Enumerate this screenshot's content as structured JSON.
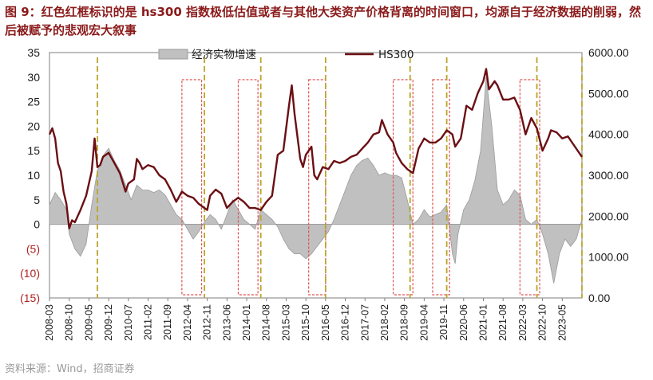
{
  "header": {
    "title": "图 9：红色红框标识的是 hs300 指数极低估值或者与其他大类资产价格背离的时间窗口，均源自于经济数据的削弱，然后被赋予的悲观宏大叙事"
  },
  "footer": {
    "source": "资料来源：Wind，招商证券"
  },
  "chart_data": {
    "type": "line",
    "title": "",
    "legend_placement": "top",
    "y_left": {
      "ylim": [
        -15,
        35
      ],
      "ticks": [
        35,
        30,
        25,
        20,
        15,
        10,
        5,
        0,
        -5,
        -10,
        -15
      ],
      "tick_labels": [
        "35",
        "30",
        "25",
        "20",
        "15",
        "10",
        "5",
        "0",
        "(5)",
        "(10)",
        "(15)"
      ]
    },
    "y_right": {
      "ylim": [
        0,
        6000
      ],
      "ticks": [
        6000,
        5000,
        4000,
        3000,
        2000,
        1000,
        0
      ],
      "tick_labels": [
        "6000.00",
        "5000.00",
        "4000.00",
        "3000.00",
        "2000.00",
        "1000.00",
        "0.00"
      ]
    },
    "x_ticks": [
      "2008-03",
      "2008-10",
      "2009-05",
      "2009-12",
      "2010-07",
      "2011-02",
      "2011-09",
      "2012-04",
      "2012-11",
      "2013-06",
      "2014-01",
      "2014-08",
      "2015-03",
      "2015-10",
      "2016-05",
      "2016-12",
      "2017-07",
      "2018-02",
      "2018-09",
      "2019-04",
      "2019-11",
      "2020-06",
      "2021-01",
      "2021-08",
      "2022-03",
      "2022-10",
      "2023-05"
    ],
    "x_range": [
      "2008-03",
      "2023-12"
    ],
    "series": [
      {
        "name": "经济实物增速",
        "type": "area",
        "axis": "left",
        "color": "#c0c0c0",
        "points": [
          [
            "2008-03",
            4
          ],
          [
            "2008-05",
            6.5
          ],
          [
            "2008-07",
            5
          ],
          [
            "2008-09",
            3
          ],
          [
            "2008-10",
            -2
          ],
          [
            "2008-12",
            -5
          ],
          [
            "2009-02",
            -6.5
          ],
          [
            "2009-04",
            -4
          ],
          [
            "2009-06",
            4
          ],
          [
            "2009-08",
            11
          ],
          [
            "2009-10",
            14
          ],
          [
            "2009-12",
            15.5
          ],
          [
            "2010-02",
            13
          ],
          [
            "2010-04",
            11
          ],
          [
            "2010-06",
            8
          ],
          [
            "2010-08",
            5
          ],
          [
            "2010-10",
            8
          ],
          [
            "2010-12",
            7
          ],
          [
            "2011-02",
            7
          ],
          [
            "2011-04",
            6.5
          ],
          [
            "2011-06",
            7
          ],
          [
            "2011-08",
            6
          ],
          [
            "2011-10",
            4
          ],
          [
            "2011-12",
            2
          ],
          [
            "2012-02",
            1
          ],
          [
            "2012-04",
            -1
          ],
          [
            "2012-06",
            -3
          ],
          [
            "2012-08",
            -1.5
          ],
          [
            "2012-10",
            0.5
          ],
          [
            "2012-12",
            2
          ],
          [
            "2013-02",
            1
          ],
          [
            "2013-04",
            -1
          ],
          [
            "2013-06",
            2
          ],
          [
            "2013-08",
            5
          ],
          [
            "2013-10",
            3
          ],
          [
            "2013-12",
            1
          ],
          [
            "2014-02",
            0
          ],
          [
            "2014-04",
            -1
          ],
          [
            "2014-06",
            3
          ],
          [
            "2014-08",
            2
          ],
          [
            "2014-10",
            1
          ],
          [
            "2014-12",
            -0.5
          ],
          [
            "2015-02",
            -3
          ],
          [
            "2015-04",
            -5
          ],
          [
            "2015-06",
            -6
          ],
          [
            "2015-08",
            -6
          ],
          [
            "2015-10",
            -7
          ],
          [
            "2015-12",
            -6
          ],
          [
            "2016-02",
            -4.5
          ],
          [
            "2016-04",
            -3
          ],
          [
            "2016-06",
            -1.5
          ],
          [
            "2016-08",
            1
          ],
          [
            "2016-10",
            4
          ],
          [
            "2016-12",
            7
          ],
          [
            "2017-02",
            10
          ],
          [
            "2017-04",
            12
          ],
          [
            "2017-06",
            13
          ],
          [
            "2017-08",
            13.5
          ],
          [
            "2017-10",
            12
          ],
          [
            "2017-12",
            10
          ],
          [
            "2018-02",
            10.5
          ],
          [
            "2018-04",
            10
          ],
          [
            "2018-06",
            10
          ],
          [
            "2018-08",
            9.5
          ],
          [
            "2018-10",
            5
          ],
          [
            "2018-12",
            0
          ],
          [
            "2019-02",
            1
          ],
          [
            "2019-04",
            3
          ],
          [
            "2019-06",
            1.5
          ],
          [
            "2019-08",
            2
          ],
          [
            "2019-10",
            2.5
          ],
          [
            "2019-12",
            4
          ],
          [
            "2020-02",
            -6
          ],
          [
            "2020-03",
            -8
          ],
          [
            "2020-04",
            -2
          ],
          [
            "2020-06",
            3
          ],
          [
            "2020-08",
            5
          ],
          [
            "2020-10",
            9
          ],
          [
            "2020-12",
            15
          ],
          [
            "2021-02",
            30
          ],
          [
            "2021-04",
            20
          ],
          [
            "2021-06",
            7
          ],
          [
            "2021-08",
            4
          ],
          [
            "2021-10",
            5
          ],
          [
            "2021-12",
            7
          ],
          [
            "2022-02",
            6
          ],
          [
            "2022-04",
            1
          ],
          [
            "2022-06",
            0
          ],
          [
            "2022-08",
            1
          ],
          [
            "2022-10",
            -2
          ],
          [
            "2022-12",
            -6
          ],
          [
            "2023-02",
            -12
          ],
          [
            "2023-04",
            -6
          ],
          [
            "2023-06",
            -3
          ],
          [
            "2023-08",
            -4.5
          ],
          [
            "2023-10",
            -3
          ],
          [
            "2023-12",
            1
          ]
        ]
      },
      {
        "name": "HS300",
        "type": "line",
        "axis": "right",
        "color": "#6b0f14",
        "points": [
          [
            "2008-03",
            4000
          ],
          [
            "2008-04",
            4150
          ],
          [
            "2008-05",
            3900
          ],
          [
            "2008-06",
            3300
          ],
          [
            "2008-07",
            3100
          ],
          [
            "2008-08",
            2600
          ],
          [
            "2008-09",
            2300
          ],
          [
            "2008-10",
            1700
          ],
          [
            "2008-11",
            1900
          ],
          [
            "2008-12",
            1850
          ],
          [
            "2009-02",
            2150
          ],
          [
            "2009-04",
            2500
          ],
          [
            "2009-06",
            3100
          ],
          [
            "2009-07",
            3900
          ],
          [
            "2009-08",
            3200
          ],
          [
            "2009-09",
            3250
          ],
          [
            "2009-10",
            3450
          ],
          [
            "2009-12",
            3550
          ],
          [
            "2010-02",
            3300
          ],
          [
            "2010-04",
            3050
          ],
          [
            "2010-06",
            2600
          ],
          [
            "2010-07",
            2800
          ],
          [
            "2010-09",
            2900
          ],
          [
            "2010-10",
            3400
          ],
          [
            "2010-11",
            3300
          ],
          [
            "2010-12",
            3150
          ],
          [
            "2011-02",
            3250
          ],
          [
            "2011-04",
            3200
          ],
          [
            "2011-06",
            3000
          ],
          [
            "2011-08",
            2900
          ],
          [
            "2011-10",
            2650
          ],
          [
            "2011-12",
            2350
          ],
          [
            "2012-02",
            2600
          ],
          [
            "2012-04",
            2500
          ],
          [
            "2012-06",
            2450
          ],
          [
            "2012-08",
            2300
          ],
          [
            "2012-10",
            2200
          ],
          [
            "2012-11",
            2150
          ],
          [
            "2012-12",
            2500
          ],
          [
            "2013-02",
            2650
          ],
          [
            "2013-04",
            2550
          ],
          [
            "2013-06",
            2200
          ],
          [
            "2013-08",
            2350
          ],
          [
            "2013-10",
            2450
          ],
          [
            "2013-12",
            2350
          ],
          [
            "2014-02",
            2200
          ],
          [
            "2014-04",
            2200
          ],
          [
            "2014-06",
            2150
          ],
          [
            "2014-08",
            2350
          ],
          [
            "2014-10",
            2500
          ],
          [
            "2014-12",
            3500
          ],
          [
            "2015-02",
            3600
          ],
          [
            "2015-04",
            4700
          ],
          [
            "2015-05",
            5200
          ],
          [
            "2015-06",
            4500
          ],
          [
            "2015-08",
            3400
          ],
          [
            "2015-09",
            3200
          ],
          [
            "2015-10",
            3500
          ],
          [
            "2015-12",
            3700
          ],
          [
            "2016-01",
            3000
          ],
          [
            "2016-02",
            2900
          ],
          [
            "2016-04",
            3200
          ],
          [
            "2016-06",
            3150
          ],
          [
            "2016-08",
            3350
          ],
          [
            "2016-10",
            3300
          ],
          [
            "2016-12",
            3350
          ],
          [
            "2017-02",
            3450
          ],
          [
            "2017-04",
            3500
          ],
          [
            "2017-06",
            3650
          ],
          [
            "2017-08",
            3800
          ],
          [
            "2017-10",
            4000
          ],
          [
            "2017-12",
            4050
          ],
          [
            "2018-01",
            4350
          ],
          [
            "2018-03",
            4000
          ],
          [
            "2018-05",
            3800
          ],
          [
            "2018-06",
            3550
          ],
          [
            "2018-08",
            3300
          ],
          [
            "2018-10",
            3150
          ],
          [
            "2018-12",
            3050
          ],
          [
            "2019-02",
            3650
          ],
          [
            "2019-04",
            3900
          ],
          [
            "2019-06",
            3800
          ],
          [
            "2019-08",
            3800
          ],
          [
            "2019-10",
            3900
          ],
          [
            "2019-12",
            4100
          ],
          [
            "2020-02",
            4000
          ],
          [
            "2020-03",
            3700
          ],
          [
            "2020-05",
            3900
          ],
          [
            "2020-07",
            4700
          ],
          [
            "2020-09",
            4600
          ],
          [
            "2020-11",
            5000
          ],
          [
            "2021-01",
            5300
          ],
          [
            "2021-02",
            5600
          ],
          [
            "2021-03",
            5100
          ],
          [
            "2021-05",
            5300
          ],
          [
            "2021-06",
            5200
          ],
          [
            "2021-08",
            4850
          ],
          [
            "2021-10",
            4850
          ],
          [
            "2021-12",
            4900
          ],
          [
            "2022-02",
            4600
          ],
          [
            "2022-04",
            4000
          ],
          [
            "2022-06",
            4400
          ],
          [
            "2022-08",
            4150
          ],
          [
            "2022-10",
            3600
          ],
          [
            "2022-12",
            3900
          ],
          [
            "2023-01",
            4100
          ],
          [
            "2023-03",
            4050
          ],
          [
            "2023-05",
            3900
          ],
          [
            "2023-07",
            3950
          ],
          [
            "2023-09",
            3750
          ],
          [
            "2023-11",
            3550
          ],
          [
            "2023-12",
            3450
          ]
        ]
      }
    ],
    "highlight_windows": [
      {
        "from": "2012-02",
        "to": "2012-09",
        "color": "#e05050"
      },
      {
        "from": "2013-10",
        "to": "2014-05",
        "color": "#e05050"
      },
      {
        "from": "2015-11",
        "to": "2016-05",
        "color": "#e05050"
      },
      {
        "from": "2018-05",
        "to": "2018-12",
        "color": "#e05050"
      },
      {
        "from": "2019-07",
        "to": "2020-01",
        "color": "#e05050"
      },
      {
        "from": "2022-02",
        "to": "2022-09",
        "color": "#e05050"
      }
    ],
    "vertical_markers": [
      {
        "date": "2009-08",
        "color": "#b9a52a"
      },
      {
        "date": "2012-10",
        "color": "#b9a52a"
      },
      {
        "date": "2014-06",
        "color": "#b9a52a"
      },
      {
        "date": "2016-05",
        "color": "#b9a52a"
      },
      {
        "date": "2018-11",
        "color": "#b9a52a"
      },
      {
        "date": "2019-12",
        "color": "#b9a52a"
      },
      {
        "date": "2022-08",
        "color": "#b9a52a"
      },
      {
        "date": "2023-12",
        "color": "#b9a52a"
      }
    ]
  }
}
